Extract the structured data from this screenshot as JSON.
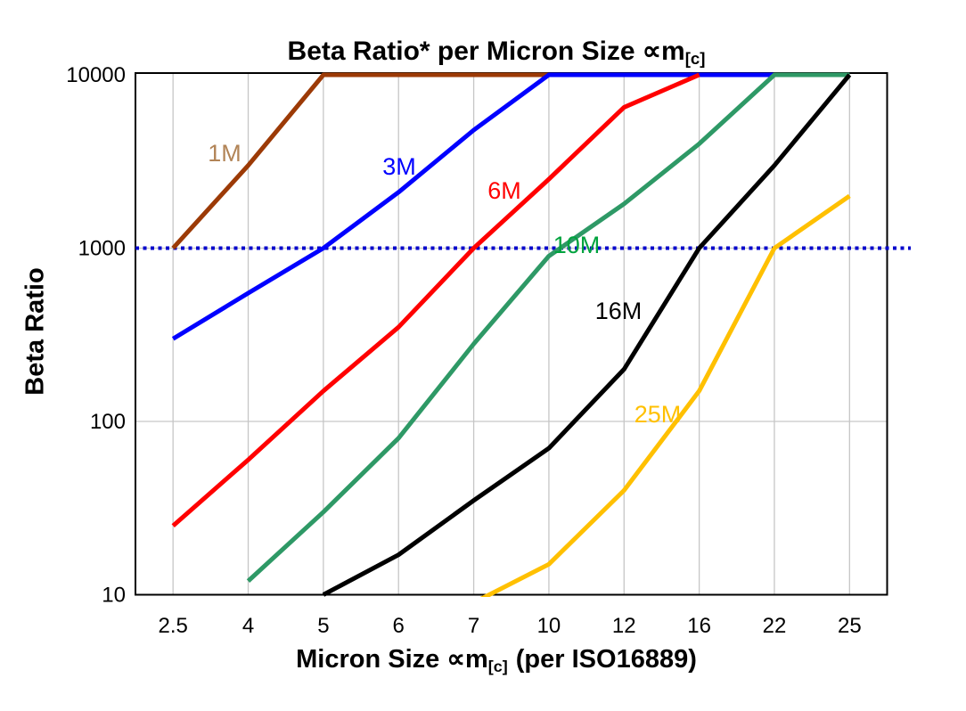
{
  "title": {
    "main": "Beta Ratio* per Micron Size",
    "symbol": "∝m",
    "sub": "[c]"
  },
  "axes": {
    "y": {
      "label": "Beta Ratio",
      "scale": "log",
      "min": 10,
      "max": 10000,
      "tick_labels": [
        "10",
        "100",
        "1000",
        "10000"
      ]
    },
    "x": {
      "label_main": "Micron Size",
      "label_symbol": "∝m",
      "label_sub": "[c]",
      "label_suffix": "(per ISO16889)",
      "tick_labels": [
        "2.5",
        "4",
        "5",
        "6",
        "7",
        "10",
        "12",
        "16",
        "22",
        "25"
      ]
    }
  },
  "reference_line": {
    "value": 1000,
    "style": "dotted",
    "color": "#0000CC"
  },
  "colors": {
    "grid": "#C6C6C6",
    "axis": "#000000",
    "background": "#FFFFFF"
  },
  "chart_data": {
    "type": "line",
    "x_scale": "category",
    "y_scale": "log",
    "ylim": [
      10,
      10000
    ],
    "grid": true,
    "legend": "inline-labels",
    "title": "Beta Ratio* per Micron Size ∝m[c]",
    "xlabel": "Micron Size ∝m[c] (per ISO16889)",
    "ylabel": "Beta Ratio",
    "categories": [
      2.5,
      4,
      5,
      6,
      7,
      10,
      12,
      16,
      22,
      25
    ],
    "reference_line_y": 1000,
    "series": [
      {
        "name": "1M",
        "color": "#9C3A06",
        "label_color": "#B28457",
        "points": [
          [
            2.5,
            1000
          ],
          [
            4,
            3000
          ],
          [
            5,
            10000
          ],
          [
            6,
            10000
          ],
          [
            7,
            10000
          ],
          [
            10,
            10000
          ]
        ]
      },
      {
        "name": "3M",
        "color": "#0000FF",
        "label_color": "#0000FF",
        "points": [
          [
            2.5,
            300
          ],
          [
            4,
            550
          ],
          [
            5,
            1000
          ],
          [
            6,
            2100
          ],
          [
            7,
            4800
          ],
          [
            10,
            10000
          ],
          [
            12,
            10000
          ],
          [
            16,
            10000
          ],
          [
            22,
            10000
          ]
        ]
      },
      {
        "name": "6M",
        "color": "#FF0000",
        "label_color": "#FF0000",
        "points": [
          [
            2.5,
            25
          ],
          [
            4,
            60
          ],
          [
            5,
            150
          ],
          [
            6,
            350
          ],
          [
            7,
            1000
          ],
          [
            10,
            2500
          ],
          [
            12,
            6500
          ],
          [
            16,
            10000
          ]
        ]
      },
      {
        "name": "10M",
        "color": "#2E9966",
        "label_color": "#00A33E",
        "points": [
          [
            4,
            12
          ],
          [
            5,
            30
          ],
          [
            6,
            80
          ],
          [
            7,
            280
          ],
          [
            10,
            900
          ],
          [
            12,
            1800
          ],
          [
            16,
            4000
          ],
          [
            22,
            10000
          ],
          [
            25,
            10000
          ]
        ]
      },
      {
        "name": "16M",
        "color": "#000000",
        "label_color": "#000000",
        "points": [
          [
            5,
            10
          ],
          [
            6,
            17
          ],
          [
            7,
            35
          ],
          [
            10,
            70
          ],
          [
            12,
            200
          ],
          [
            16,
            1000
          ],
          [
            22,
            3000
          ],
          [
            25,
            10000
          ]
        ]
      },
      {
        "name": "25M",
        "color": "#FFC000",
        "label_color": "#FFC000",
        "points": [
          [
            7,
            9
          ],
          [
            10,
            15
          ],
          [
            12,
            40
          ],
          [
            16,
            150
          ],
          [
            22,
            1000
          ],
          [
            25,
            2000
          ]
        ]
      }
    ]
  }
}
